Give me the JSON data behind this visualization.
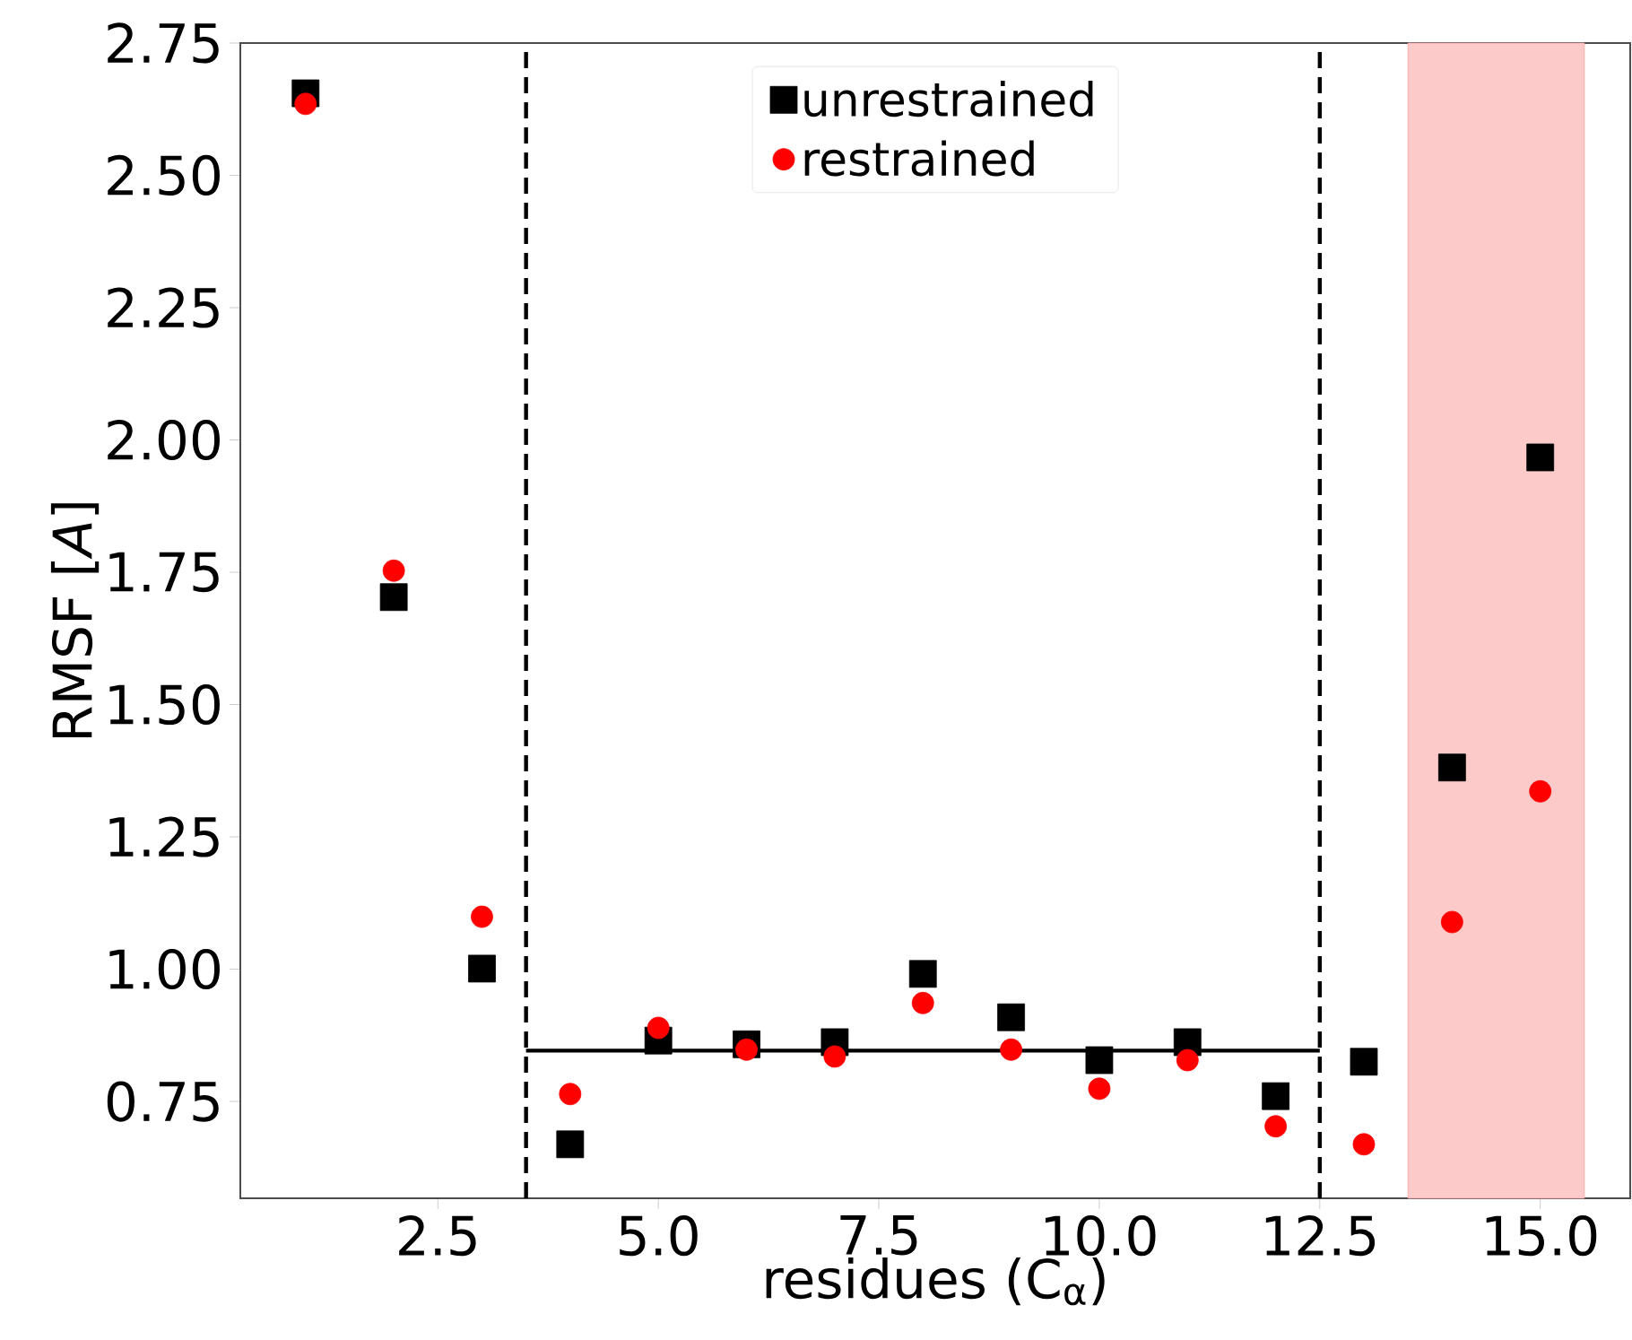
{
  "chart_data": {
    "type": "scatter",
    "xlabel": "residues (C$_{α}$)",
    "ylabel": "RMSF [*A*]",
    "x": [
      1,
      2,
      3,
      4,
      5,
      6,
      7,
      8,
      9,
      10,
      11,
      12,
      13,
      14,
      15
    ],
    "xlim": [
      0.26,
      16.02
    ],
    "ylim": [
      0.567,
      2.75
    ],
    "xticks": [
      {
        "value": 2.5,
        "label": "2.5"
      },
      {
        "value": 5,
        "label": "5.0"
      },
      {
        "value": 7.5,
        "label": "7.5"
      },
      {
        "value": 10,
        "label": "10.0"
      },
      {
        "value": 12.5,
        "label": "12.5"
      },
      {
        "value": 15,
        "label": "15.0"
      }
    ],
    "yticks": [
      {
        "value": 0.75,
        "label": "0.75"
      },
      {
        "value": 1,
        "label": "1.00"
      },
      {
        "value": 1.25,
        "label": "1.25"
      },
      {
        "value": 1.5,
        "label": "1.50"
      },
      {
        "value": 1.75,
        "label": "1.75"
      },
      {
        "value": 2,
        "label": "2.00"
      },
      {
        "value": 2.25,
        "label": "2.25"
      },
      {
        "value": 2.5,
        "label": "2.50"
      },
      {
        "value": 2.75,
        "label": "2.75"
      }
    ],
    "series": [
      {
        "name": "unrestrained",
        "color": "#000000",
        "marker": "square",
        "values": [
          2.655,
          1.703,
          1.001,
          0.669,
          0.865,
          0.858,
          0.862,
          0.991,
          0.909,
          0.828,
          0.862,
          0.76,
          0.825,
          1.381,
          1.967
        ]
      },
      {
        "name": "restrained",
        "color": "#ff0000",
        "marker": "circle",
        "values": [
          2.635,
          1.753,
          1.099,
          0.764,
          0.889,
          0.848,
          0.835,
          0.936,
          0.848,
          0.774,
          0.828,
          0.703,
          0.669,
          1.089,
          1.336
        ]
      },
      {
        "type": "line",
        "color": "#000000",
        "x": [
          3.5,
          12.5
        ],
        "values": [
          0.846,
          0.846
        ]
      }
    ],
    "ref_lines": [
      {
        "axis": "x",
        "value": 3.5,
        "color": "#000000",
        "line_style": "dashed"
      },
      {
        "axis": "x",
        "value": 12.5,
        "color": "#000000",
        "line_style": "dashed"
      }
    ],
    "bands": [
      {
        "axis": "x",
        "from": 13.5,
        "to": 15.5,
        "color": "#fdcaca"
      }
    ],
    "legend": "top"
  }
}
